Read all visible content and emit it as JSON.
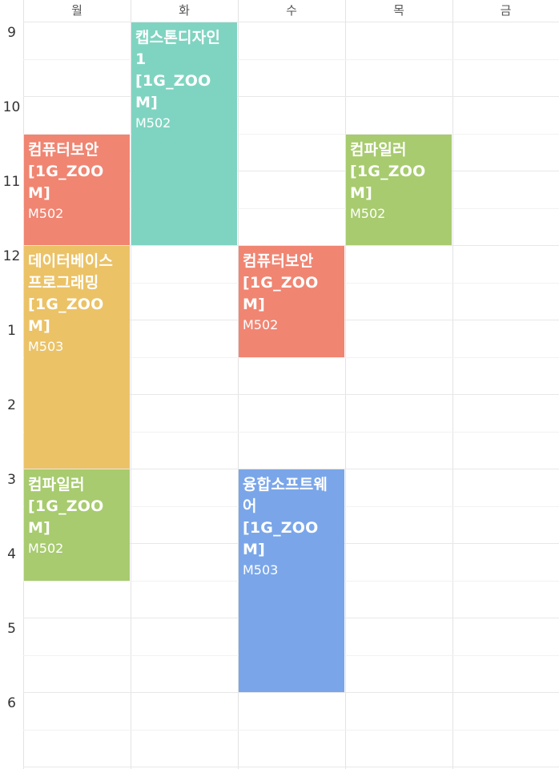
{
  "days": [
    "월",
    "화",
    "수",
    "목",
    "금"
  ],
  "hours": [
    "9",
    "10",
    "11",
    "12",
    "1",
    "2",
    "3",
    "4",
    "5",
    "6"
  ],
  "courses": [
    {
      "day": 0,
      "start": 10.5,
      "end": 12,
      "title_lines": [
        "컴퓨터보안",
        "[1G_ZOOM]"
      ],
      "room": "M502",
      "color": "#f08572"
    },
    {
      "day": 0,
      "start": 12,
      "end": 15,
      "title_lines": [
        "데이터베이스",
        "프로그래밍",
        "[1G_ZOOM]"
      ],
      "room": "M503",
      "color": "#ebc266"
    },
    {
      "day": 0,
      "start": 15,
      "end": 16.5,
      "title_lines": [
        "컴파일러",
        "[1G_ZOOM]"
      ],
      "room": "M502",
      "color": "#a7cb6e"
    },
    {
      "day": 1,
      "start": 9,
      "end": 12,
      "title_lines": [
        "캡스톤디자인",
        "1",
        "[1G_ZOOM]"
      ],
      "room": "M502",
      "color": "#7fd4c1"
    },
    {
      "day": 2,
      "start": 12,
      "end": 13.5,
      "title_lines": [
        "컴퓨터보안",
        "[1G_ZOOM]"
      ],
      "room": "M502",
      "color": "#f08572"
    },
    {
      "day": 2,
      "start": 15,
      "end": 18,
      "title_lines": [
        "융합소프트웨",
        "어",
        "[1G_ZOOM]"
      ],
      "room": "M503",
      "color": "#7aa6e9"
    },
    {
      "day": 3,
      "start": 10.5,
      "end": 12,
      "title_lines": [
        "컴파일러",
        "[1G_ZOOM]"
      ],
      "room": "M502",
      "color": "#a7cb6e"
    }
  ]
}
